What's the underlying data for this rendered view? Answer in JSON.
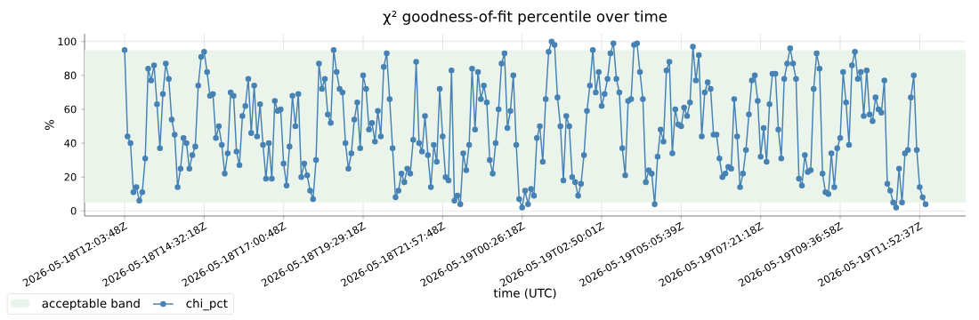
{
  "chart_data": {
    "type": "line",
    "title": "χ² goodness-of-fit percentile over time",
    "xlabel": "time (UTC)",
    "ylabel": "%",
    "categories": [
      "2026-05-18T12:03:48Z",
      null,
      null,
      null,
      null,
      null,
      null,
      null,
      null,
      null,
      null,
      null,
      null,
      null,
      null,
      null,
      null,
      null,
      null,
      null,
      null,
      null,
      null,
      null,
      null,
      null,
      null,
      "2026-05-18T14:32:18Z",
      null,
      null,
      null,
      null,
      null,
      null,
      null,
      null,
      null,
      null,
      null,
      null,
      null,
      null,
      null,
      null,
      null,
      null,
      null,
      null,
      null,
      null,
      null,
      null,
      null,
      null,
      "2026-05-18T17:00:48Z",
      null,
      null,
      null,
      null,
      null,
      null,
      null,
      null,
      null,
      null,
      null,
      null,
      null,
      null,
      null,
      null,
      null,
      null,
      null,
      null,
      null,
      null,
      null,
      null,
      null,
      null,
      "2026-05-18T19:29:18Z",
      null,
      null,
      null,
      null,
      null,
      null,
      null,
      null,
      null,
      null,
      null,
      null,
      null,
      null,
      null,
      null,
      null,
      null,
      null,
      null,
      null,
      null,
      null,
      null,
      null,
      null,
      "2026-05-18T21:57:48Z",
      null,
      null,
      null,
      null,
      null,
      null,
      null,
      null,
      null,
      null,
      null,
      null,
      null,
      null,
      null,
      null,
      null,
      null,
      null,
      null,
      null,
      null,
      null,
      null,
      null,
      null,
      "2026-05-19T00:26:18Z",
      null,
      null,
      null,
      null,
      null,
      null,
      null,
      null,
      null,
      null,
      null,
      null,
      null,
      null,
      null,
      null,
      null,
      null,
      null,
      null,
      null,
      null,
      null,
      null,
      null,
      null,
      "2026-05-19T02:50:01Z",
      null,
      null,
      null,
      null,
      null,
      null,
      null,
      null,
      null,
      null,
      null,
      null,
      null,
      null,
      null,
      null,
      null,
      null,
      null,
      null,
      null,
      null,
      null,
      null,
      null,
      null,
      "2026-05-19T05:05:39Z",
      null,
      null,
      null,
      null,
      null,
      null,
      null,
      null,
      null,
      null,
      null,
      null,
      null,
      null,
      null,
      null,
      null,
      null,
      null,
      null,
      null,
      null,
      null,
      null,
      null,
      null,
      "2026-05-19T07:21:18Z",
      null,
      null,
      null,
      null,
      null,
      null,
      null,
      null,
      null,
      null,
      null,
      null,
      null,
      null,
      null,
      null,
      null,
      null,
      null,
      null,
      null,
      null,
      null,
      null,
      null,
      null,
      "2026-05-19T09:36:58Z",
      null,
      null,
      null,
      null,
      null,
      null,
      null,
      null,
      null,
      null,
      null,
      null,
      null,
      null,
      null,
      null,
      null,
      null,
      null,
      null,
      null,
      null,
      null,
      null,
      null,
      null,
      "2026-05-19T11:52:37Z",
      null,
      null
    ],
    "series": [
      {
        "name": "chi_pct",
        "color": "#4682b4",
        "values": [
          95,
          44,
          40,
          11,
          14,
          6,
          11,
          31,
          84,
          77,
          86,
          63,
          37,
          69,
          87,
          78,
          54,
          45,
          14,
          25,
          43,
          40,
          25,
          33,
          38,
          74,
          91,
          94,
          82,
          68,
          69,
          43,
          50,
          39,
          22,
          34,
          70,
          68,
          35,
          27,
          56,
          62,
          78,
          46,
          74,
          44,
          63,
          39,
          19,
          40,
          19,
          65,
          59,
          60,
          28,
          15,
          38,
          68,
          50,
          69,
          20,
          28,
          21,
          12,
          7,
          30,
          87,
          72,
          78,
          57,
          52,
          95,
          82,
          72,
          70,
          40,
          25,
          34,
          54,
          64,
          37,
          80,
          72,
          48,
          52,
          41,
          59,
          44,
          85,
          93,
          66,
          37,
          8,
          12,
          22,
          17,
          25,
          22,
          42,
          88,
          40,
          35,
          56,
          33,
          14,
          39,
          29,
          72,
          44,
          20,
          18,
          83,
          6,
          9,
          4,
          34,
          24,
          39,
          84,
          48,
          82,
          66,
          74,
          64,
          30,
          22,
          40,
          60,
          87,
          93,
          49,
          59,
          80,
          39,
          7,
          2,
          12,
          4,
          13,
          9,
          43,
          50,
          29,
          66,
          94,
          100,
          98,
          67,
          50,
          18,
          56,
          50,
          20,
          17,
          9,
          16,
          33,
          59,
          74,
          95,
          70,
          82,
          62,
          69,
          78,
          93,
          99,
          78,
          70,
          37,
          21,
          65,
          66,
          98,
          99,
          82,
          66,
          17,
          24,
          22,
          4,
          32,
          48,
          41,
          83,
          88,
          34,
          60,
          51,
          50,
          61,
          56,
          64,
          97,
          77,
          92,
          44,
          70,
          76,
          72,
          45,
          45,
          31,
          20,
          22,
          26,
          25,
          66,
          44,
          14,
          22,
          36,
          57,
          77,
          80,
          65,
          32,
          49,
          29,
          63,
          81,
          81,
          48,
          31,
          78,
          87,
          96,
          87,
          78,
          19,
          15,
          33,
          23,
          24,
          72,
          93,
          84,
          22,
          11,
          10,
          34,
          14,
          37,
          43,
          82,
          64,
          39,
          86,
          94,
          78,
          82,
          56,
          83,
          57,
          53,
          67,
          60,
          58,
          77,
          16,
          12,
          5,
          2,
          25,
          5,
          34,
          36,
          67,
          80,
          36,
          14,
          8,
          4
        ]
      }
    ],
    "ylim": [
      -3,
      104.6
    ],
    "yticks": [
      0,
      20,
      40,
      60,
      80,
      100
    ],
    "bands": [
      {
        "axis": "y",
        "from": 5,
        "to": 95,
        "label": "acceptable band",
        "color": "#eaf4ea"
      }
    ],
    "grid": true,
    "legend": "bottom left",
    "marker": "circle",
    "line_style": "solid"
  }
}
